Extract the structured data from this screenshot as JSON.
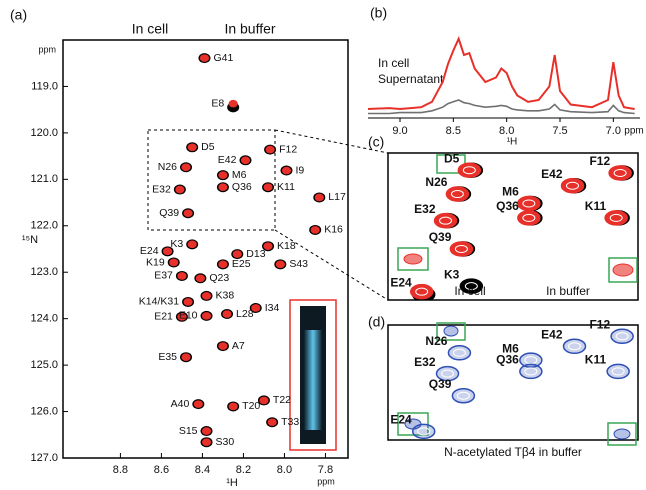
{
  "chart_data": [
    {
      "type": "scatter",
      "panel": "(a)",
      "x_label": "¹H",
      "x_unit": "ppm",
      "y_label": "¹⁵N",
      "y_unit": "ppm",
      "xlim": [
        9.08,
        7.69
      ],
      "ylim": [
        118.0,
        127.0
      ],
      "xticks": [
        8.8,
        8.6,
        8.4,
        8.2,
        {
          "value": 8.0,
          "label": "8.0"
        },
        7.8
      ],
      "yticks": [
        {
          "value": 119,
          "label": "119.0"
        },
        {
          "value": 120,
          "label": "120.0"
        },
        {
          "value": 121,
          "label": "121.0"
        },
        {
          "value": 122,
          "label": "122.0"
        },
        {
          "value": 123,
          "label": "123.0"
        },
        {
          "value": 124,
          "label": "124.0"
        },
        {
          "value": 125,
          "label": "125.0"
        },
        {
          "value": 126,
          "label": "126.0"
        },
        {
          "value": 127,
          "label": "127.0"
        }
      ],
      "labels": [
        "G41",
        "E8",
        "D5",
        "E42",
        "F12",
        "I9",
        "M6",
        "N26",
        "E32",
        "Q36",
        "K11",
        "L17",
        "Q39",
        "K16",
        "K3",
        "E24",
        "K18",
        "K19",
        "D13",
        "E25",
        "S43",
        "E37",
        "Q23",
        "K38",
        "K14/K31",
        "I34",
        "E21",
        "E10",
        "L28",
        "A7",
        "E35",
        "T22",
        "A40",
        "T20",
        "T33",
        "S15",
        "S30"
      ],
      "x": [
        8.39,
        8.25,
        8.45,
        8.19,
        8.07,
        7.99,
        8.3,
        8.48,
        8.51,
        8.3,
        8.08,
        7.83,
        8.47,
        7.85,
        8.45,
        8.57,
        8.08,
        8.54,
        8.23,
        8.3,
        8.02,
        8.5,
        8.41,
        8.38,
        8.47,
        8.14,
        8.5,
        8.38,
        8.28,
        8.3,
        8.48,
        8.1,
        8.42,
        8.25,
        8.06,
        8.38,
        8.38
      ],
      "series": [
        {
          "name": "In buffer",
          "color": "#000000",
          "values": [
            118.39,
            119.45,
            120.31,
            120.59,
            120.36,
            120.81,
            120.91,
            120.74,
            121.22,
            121.17,
            121.17,
            121.39,
            121.73,
            122.09,
            122.4,
            122.55,
            122.44,
            122.79,
            122.61,
            122.83,
            122.83,
            123.08,
            123.13,
            123.51,
            123.64,
            123.77,
            123.96,
            123.94,
            123.9,
            124.59,
            124.83,
            125.76,
            125.84,
            125.89,
            126.23,
            126.42,
            126.66
          ]
        },
        {
          "name": "In cell",
          "color": "#e8302a",
          "values": [
            118.39,
            119.37,
            120.31,
            120.59,
            120.36,
            120.81,
            120.91,
            120.74,
            121.22,
            121.17,
            121.17,
            121.39,
            121.73,
            122.09,
            122.4,
            122.55,
            122.44,
            122.79,
            122.61,
            122.83,
            122.83,
            123.08,
            123.13,
            123.51,
            123.64,
            123.77,
            123.96,
            123.94,
            123.9,
            124.59,
            124.83,
            125.76,
            125.84,
            125.89,
            126.23,
            126.42,
            126.66
          ]
        }
      ]
    },
    {
      "type": "line",
      "panel": "(b)",
      "x_label": "¹H",
      "x_unit": "ppm",
      "xlim": [
        9.3,
        6.75
      ],
      "ylim": [
        0,
        100
      ],
      "xticks": [
        {
          "value": 9.0,
          "label": "9.0"
        },
        8.5,
        {
          "value": 8.0,
          "label": "8.0"
        },
        7.5,
        {
          "value": 7.0,
          "label": "7.0"
        }
      ],
      "x": [
        9.3,
        9.1,
        9.0,
        8.9,
        8.8,
        8.7,
        8.6,
        8.55,
        8.5,
        8.45,
        8.4,
        8.35,
        8.3,
        8.2,
        8.1,
        8.05,
        8.0,
        7.95,
        7.9,
        7.8,
        7.7,
        7.6,
        7.55,
        7.5,
        7.4,
        7.2,
        7.05,
        7.0,
        6.95,
        6.9,
        6.8
      ],
      "series": [
        {
          "name": "In cell",
          "color": "#e8302a",
          "values": [
            10,
            11,
            10,
            11,
            12,
            18,
            40,
            60,
            75,
            88,
            70,
            72,
            55,
            40,
            45,
            55,
            50,
            35,
            25,
            18,
            20,
            35,
            70,
            30,
            15,
            12,
            20,
            62,
            25,
            12,
            10
          ]
        },
        {
          "name": "Supernatant",
          "color": "#707070",
          "values": [
            5,
            5,
            6,
            6,
            6,
            8,
            12,
            16,
            18,
            20,
            17,
            16,
            14,
            12,
            13,
            14,
            13,
            10,
            9,
            8,
            8,
            10,
            15,
            9,
            7,
            6,
            7,
            14,
            8,
            6,
            5
          ]
        }
      ]
    },
    {
      "type": "contour",
      "panel": "(c)",
      "xlim": [
        8.66,
        8.03
      ],
      "ylim": [
        120.0,
        122.65
      ],
      "labels": [
        "N26",
        "D5",
        "E42",
        "F12",
        "E32",
        "M6",
        "Q39",
        "Q36",
        "K11",
        "K3",
        "E24"
      ],
      "x": [
        8.48,
        8.45,
        8.19,
        8.07,
        8.51,
        8.3,
        8.47,
        8.3,
        8.08,
        8.45,
        8.57
      ],
      "series": [
        {
          "name": "In buffer",
          "color": "#000000",
          "values": [
            120.74,
            120.31,
            120.59,
            120.36,
            121.22,
            120.91,
            121.73,
            121.17,
            121.17,
            122.4,
            122.55
          ]
        },
        {
          "name": "In cell",
          "color": "#e8302a",
          "values": [
            120.74,
            120.31,
            120.59,
            120.36,
            121.22,
            120.91,
            121.73,
            121.17,
            121.17,
            null,
            122.5
          ]
        }
      ]
    },
    {
      "type": "contour",
      "panel": "(d)",
      "xlim": [
        8.66,
        8.03
      ],
      "ylim": [
        120.1,
        122.75
      ],
      "labels": [
        "N26",
        "E42",
        "F12",
        "E32",
        "M6",
        "Q36",
        "K11",
        "Q39",
        "E24"
      ],
      "x": [
        8.48,
        8.19,
        8.07,
        8.51,
        8.3,
        8.3,
        8.08,
        8.47,
        8.57
      ],
      "series": [
        {
          "name": "N-acetylated Tβ4 in buffer",
          "color": "#2e4fb5",
          "values": [
            120.74,
            120.59,
            120.36,
            121.22,
            120.91,
            121.17,
            121.17,
            121.73,
            122.55
          ]
        }
      ]
    }
  ]
}
